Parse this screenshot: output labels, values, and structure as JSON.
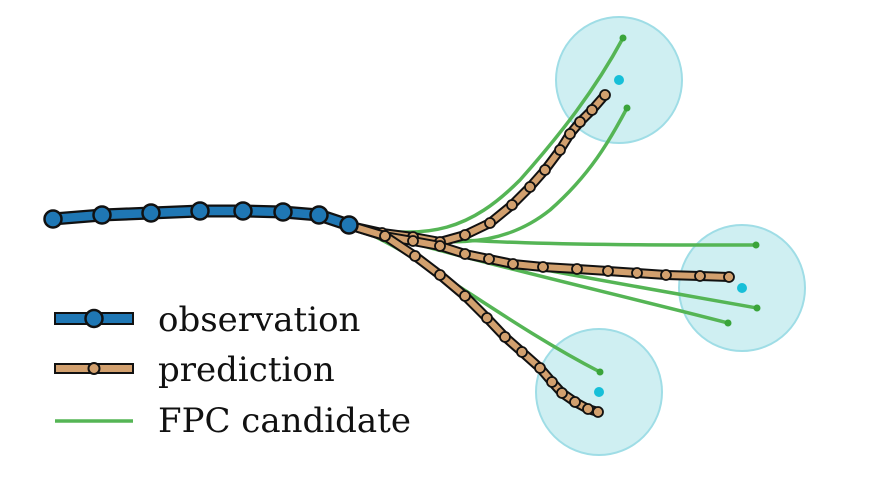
{
  "legend": {
    "observation": "observation",
    "prediction": "prediction",
    "fpc_candidate": "FPC candidate"
  },
  "colors": {
    "observation_fill": "#1f77b4",
    "prediction_fill": "#d2a06e",
    "candidate": "#55b555",
    "goal_region": "#bfe9ee",
    "goal_center": "#17bfd8",
    "outline": "#111111"
  }
}
